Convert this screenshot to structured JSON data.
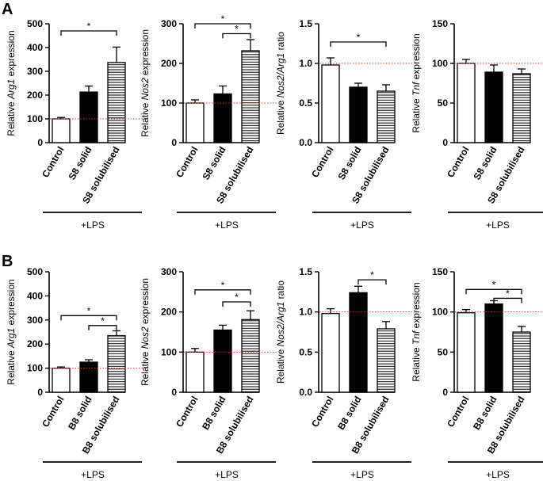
{
  "panels": [
    {
      "label": "A",
      "section": "S8"
    },
    {
      "label": "B",
      "section": "B8"
    }
  ],
  "chart_data": [
    {
      "type": "bar",
      "panel": "A",
      "ylabel_pre": "Relative ",
      "ylabel_gene": "Arg1",
      "ylabel_post": " expression",
      "categories": [
        "Control",
        "S8 solid",
        "S8 solubilised"
      ],
      "fills": [
        "white",
        "black",
        "hatch"
      ],
      "values": [
        100,
        213,
        337
      ],
      "errors": [
        6,
        25,
        65
      ],
      "ylim": [
        0,
        500
      ],
      "ticks": [
        "0",
        "100",
        "200",
        "300",
        "400",
        "500"
      ],
      "tickvals": [
        0,
        100,
        200,
        300,
        400,
        500
      ],
      "reference_line": 100,
      "treatment": "+LPS",
      "significance": [
        {
          "from": 0,
          "to": 2,
          "y": 470,
          "label": "*"
        }
      ]
    },
    {
      "type": "bar",
      "panel": "A",
      "ylabel_pre": "Relative ",
      "ylabel_gene": "Nos2",
      "ylabel_post": " expression",
      "categories": [
        "Control",
        "S8 solid",
        "S8 solubilised"
      ],
      "fills": [
        "white",
        "black",
        "hatch"
      ],
      "values": [
        100,
        123,
        232
      ],
      "errors": [
        8,
        20,
        28
      ],
      "ylim": [
        0,
        300
      ],
      "ticks": [
        "0",
        "100",
        "200",
        "300"
      ],
      "tickvals": [
        0,
        100,
        200,
        300
      ],
      "reference_line": 100,
      "treatment": "+LPS",
      "significance": [
        {
          "from": 0,
          "to": 2,
          "y": 300,
          "label": "*"
        },
        {
          "from": 1,
          "to": 2,
          "y": 275,
          "label": "*"
        }
      ]
    },
    {
      "type": "bar",
      "panel": "A",
      "ylabel_pre": "Relative ",
      "ylabel_gene": "Nos2/Arg1",
      "ylabel_post": " ratio",
      "categories": [
        "Control",
        "S8 solid",
        "S8 solubilised"
      ],
      "fills": [
        "white",
        "black",
        "hatch"
      ],
      "values": [
        0.98,
        0.7,
        0.65
      ],
      "errors": [
        0.09,
        0.05,
        0.08
      ],
      "ylim": [
        0,
        1.5
      ],
      "ticks": [
        "0.0",
        "0.5",
        "1.0",
        "1.5"
      ],
      "tickvals": [
        0,
        0.5,
        1.0,
        1.5
      ],
      "reference_line": 1.0,
      "treatment": "+LPS",
      "significance": [
        {
          "from": 0,
          "to": 2,
          "y": 1.27,
          "label": "*"
        }
      ]
    },
    {
      "type": "bar",
      "panel": "A",
      "ylabel_pre": "Relative ",
      "ylabel_gene": "Tnf",
      "ylabel_post": " expression",
      "categories": [
        "Control",
        "S8 solid",
        "S8 solubilised"
      ],
      "fills": [
        "white",
        "black",
        "hatch"
      ],
      "values": [
        100,
        89,
        87
      ],
      "errors": [
        5,
        9,
        6
      ],
      "ylim": [
        0,
        150
      ],
      "ticks": [
        "0",
        "50",
        "100",
        "150"
      ],
      "tickvals": [
        0,
        50,
        100,
        150
      ],
      "reference_line": 100,
      "treatment": "+LPS",
      "significance": []
    },
    {
      "type": "bar",
      "panel": "B",
      "ylabel_pre": "Relative ",
      "ylabel_gene": "Arg1",
      "ylabel_post": " expression",
      "categories": [
        "Control",
        "B8 solid",
        "B8 solubilised"
      ],
      "fills": [
        "white",
        "black",
        "hatch"
      ],
      "values": [
        100,
        125,
        235
      ],
      "errors": [
        5,
        10,
        20
      ],
      "ylim": [
        0,
        500
      ],
      "ticks": [
        "0",
        "100",
        "200",
        "300",
        "400",
        "500"
      ],
      "tickvals": [
        0,
        100,
        200,
        300,
        400,
        500
      ],
      "reference_line": 100,
      "treatment": "+LPS",
      "significance": [
        {
          "from": 0,
          "to": 2,
          "y": 318,
          "label": "*"
        },
        {
          "from": 1,
          "to": 2,
          "y": 277,
          "label": "*"
        }
      ]
    },
    {
      "type": "bar",
      "panel": "B",
      "ylabel_pre": "Relative ",
      "ylabel_gene": "Nos2",
      "ylabel_post": " expression",
      "categories": [
        "Control",
        "B8 solid",
        "B8 solubilised"
      ],
      "fills": [
        "white",
        "black",
        "hatch"
      ],
      "values": [
        100,
        155,
        181
      ],
      "errors": [
        9,
        12,
        22
      ],
      "ylim": [
        0,
        300
      ],
      "ticks": [
        "0",
        "100",
        "200",
        "300"
      ],
      "tickvals": [
        0,
        100,
        200,
        300
      ],
      "reference_line": 100,
      "treatment": "+LPS",
      "significance": [
        {
          "from": 0,
          "to": 2,
          "y": 255,
          "label": "*"
        },
        {
          "from": 1,
          "to": 2,
          "y": 225,
          "label": "*"
        }
      ]
    },
    {
      "type": "bar",
      "panel": "B",
      "ylabel_pre": "Relative ",
      "ylabel_gene": "Nos2/Arg1",
      "ylabel_post": " ratio",
      "categories": [
        "Control",
        "B8 solid",
        "B8 solubilised"
      ],
      "fills": [
        "white",
        "black",
        "hatch"
      ],
      "values": [
        0.98,
        1.24,
        0.79
      ],
      "errors": [
        0.06,
        0.08,
        0.09
      ],
      "ylim": [
        0,
        1.5
      ],
      "ticks": [
        "0.0",
        "0.5",
        "1.0",
        "1.5"
      ],
      "tickvals": [
        0,
        0.5,
        1.0,
        1.5
      ],
      "reference_line": 1.0,
      "treatment": "+LPS",
      "significance": [
        {
          "from": 1,
          "to": 2,
          "y": 1.4,
          "label": "*"
        }
      ]
    },
    {
      "type": "bar",
      "panel": "B",
      "ylabel_pre": "Relative ",
      "ylabel_gene": "Tnf",
      "ylabel_post": " expression",
      "categories": [
        "Control",
        "B8 solid",
        "B8 solubilised"
      ],
      "fills": [
        "white",
        "black",
        "hatch"
      ],
      "values": [
        99,
        110,
        75
      ],
      "errors": [
        4,
        4,
        7
      ],
      "ylim": [
        0,
        150
      ],
      "ticks": [
        "0",
        "50",
        "100",
        "150"
      ],
      "tickvals": [
        0,
        50,
        100,
        150
      ],
      "reference_line": 100,
      "treatment": "+LPS",
      "significance": [
        {
          "from": 0,
          "to": 2,
          "y": 128,
          "label": "*"
        },
        {
          "from": 1,
          "to": 2,
          "y": 117,
          "label": "*"
        }
      ]
    }
  ]
}
